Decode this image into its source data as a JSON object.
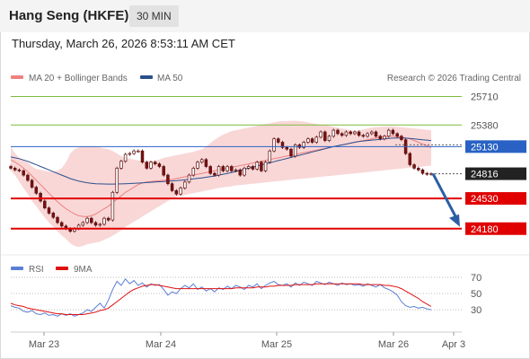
{
  "header": {
    "title": "Hang Seng (HKFE)",
    "interval": "30 MIN",
    "timestamp": "Thursday, March 26, 2026 8:53:11 AM CET"
  },
  "legend": {
    "items": [
      {
        "label": "MA 20 + Bollinger Bands",
        "color": "#f08080"
      },
      {
        "label": "MA 50",
        "color": "#2b4f8c"
      }
    ],
    "credit": "Research © 2026 Trading Central"
  },
  "rsi_legend": {
    "items": [
      {
        "label": "RSI",
        "color": "#5b7fd6"
      },
      {
        "label": "9MA",
        "color": "#e01010"
      }
    ]
  },
  "colors": {
    "up_candle": "#ffffff",
    "down_candle": "#7a1010",
    "bollinger_fill": "#f8d0d0",
    "ma20": "#f08080",
    "ma50": "#2b4f8c",
    "resistance_green": "#7cbc3c",
    "resistance_blue": "#2962c4",
    "support_red": "#e00000",
    "current_price": "#222222",
    "arrow": "#2b5fa3"
  },
  "chart_data": [
    {
      "type": "candlestick",
      "title": "",
      "xlabel": "",
      "ylabel": "",
      "x_ticks": [
        "Mar 23",
        "Mar 24",
        "Mar 25",
        "Mar 26",
        "Apr 3"
      ],
      "ylim": [
        23980,
        25830
      ],
      "levels": [
        {
          "value": 25710,
          "label": "25710",
          "kind": "resistance",
          "style": "line-green"
        },
        {
          "value": 25380,
          "label": "25380",
          "kind": "resistance",
          "style": "line-green"
        },
        {
          "value": 25130,
          "label": "25130",
          "kind": "resistance",
          "style": "tag-blue"
        },
        {
          "value": 24816,
          "label": "24816",
          "kind": "current",
          "style": "tag-dark"
        },
        {
          "value": 24530,
          "label": "24530",
          "kind": "support",
          "style": "tag-red"
        },
        {
          "value": 24180,
          "label": "24180",
          "kind": "support",
          "style": "tag-red"
        }
      ],
      "close": [
        24880,
        24860,
        24850,
        24800,
        24740,
        24660,
        24590,
        24500,
        24420,
        24360,
        24310,
        24250,
        24210,
        24180,
        24150,
        24180,
        24220,
        24250,
        24300,
        24250,
        24220,
        24230,
        24300,
        24280,
        24600,
        24880,
        24960,
        25040,
        25050,
        25080,
        25080,
        24950,
        24880,
        24950,
        24930,
        24900,
        24800,
        24700,
        24620,
        24580,
        24650,
        24720,
        24800,
        24880,
        24950,
        24980,
        24900,
        24820,
        24800,
        24900,
        24850,
        24900,
        24850,
        24860,
        24800,
        24880,
        24900,
        24870,
        24950,
        24850,
        24950,
        25080,
        25220,
        25180,
        25120,
        25100,
        25020,
        25150,
        25120,
        25180,
        25220,
        25180,
        25240,
        25300,
        25200,
        25250,
        25320,
        25280,
        25260,
        25300,
        25280,
        25300,
        25260,
        25250,
        25280,
        25300,
        25250,
        25220,
        25250,
        25320,
        25280,
        25250,
        25210,
        25050,
        24920,
        24880,
        24860,
        24820,
        24810,
        24816
      ],
      "bollinger_upper": [
        25130,
        25050,
        25000,
        24980,
        24950,
        24900,
        24870,
        24860,
        24850,
        24840,
        24840,
        24850,
        24880,
        24950,
        25050,
        25100,
        25120,
        25130,
        25130,
        25130,
        25125,
        25120,
        25110,
        25100,
        25080,
        25050,
        25020,
        25000,
        24990,
        24980,
        24970,
        24960,
        24960,
        24965,
        24970,
        24980,
        25000,
        25010,
        25020,
        25030,
        25040,
        25050,
        25060,
        25070,
        25085,
        25100,
        25130,
        25170,
        25210,
        25240,
        25270,
        25290,
        25310,
        25320,
        25330,
        25340,
        25350,
        25360,
        25370,
        25380,
        25390,
        25400,
        25410,
        25420,
        25425,
        25425,
        25430,
        25430,
        25425,
        25420,
        25410,
        25400,
        25390,
        25385,
        25380,
        25370,
        25360,
        25350,
        25340,
        25330,
        25320,
        25310,
        25320,
        25330,
        25340,
        25350,
        25355,
        25360,
        25360,
        25365,
        25365,
        25360,
        25355,
        25350,
        25345,
        25340,
        25335,
        25330,
        25325,
        25320
      ],
      "bollinger_lower": [
        24850,
        24800,
        24720,
        24650,
        24580,
        24500,
        24440,
        24370,
        24310,
        24250,
        24200,
        24150,
        24100,
        24060,
        24010,
        23980,
        23970,
        23980,
        24000,
        24010,
        24020,
        24030,
        24050,
        24070,
        24100,
        24130,
        24160,
        24200,
        24230,
        24260,
        24290,
        24320,
        24350,
        24380,
        24410,
        24440,
        24470,
        24500,
        24530,
        24550,
        24560,
        24570,
        24580,
        24590,
        24600,
        24610,
        24620,
        24630,
        24640,
        24650,
        24660,
        24665,
        24670,
        24680,
        24685,
        24690,
        24695,
        24700,
        24705,
        24710,
        24715,
        24720,
        24725,
        24730,
        24735,
        24740,
        24745,
        24750,
        24755,
        24760,
        24765,
        24770,
        24775,
        24780,
        24785,
        24790,
        24795,
        24800,
        24805,
        24810,
        24815,
        24820,
        24825,
        24830,
        24835,
        24840,
        24845,
        24850,
        24855,
        24860,
        24865,
        24870,
        24875,
        24880,
        24885,
        24890,
        24895,
        24900,
        24905,
        24910
      ],
      "ma20": [
        24980,
        24950,
        24920,
        24880,
        24840,
        24790,
        24740,
        24690,
        24640,
        24590,
        24540,
        24490,
        24450,
        24410,
        24380,
        24350,
        24330,
        24320,
        24320,
        24330,
        24350,
        24380,
        24410,
        24440,
        24480,
        24520,
        24560,
        24600,
        24630,
        24660,
        24690,
        24710,
        24720,
        24725,
        24730,
        24735,
        24740,
        24745,
        24750,
        24760,
        24770,
        24780,
        24790,
        24800,
        24810,
        24820,
        24830,
        24840,
        24850,
        24860,
        24870,
        24880,
        24890,
        24900,
        24910,
        24920,
        24930,
        24940,
        24950,
        24960,
        24970,
        24980,
        24990,
        25000,
        25010,
        25020,
        25030,
        25040,
        25050,
        25060,
        25070,
        25080,
        25090,
        25100,
        25110,
        25120,
        25130,
        25140,
        25150,
        25160,
        25170,
        25180,
        25190,
        25200,
        25210,
        25220,
        25230,
        25240,
        25245,
        25250,
        25250,
        25245,
        25240,
        25230,
        25220,
        25200,
        25180,
        25160,
        25140,
        25120
      ],
      "ma50": [
        25010,
        25000,
        24990,
        24975,
        24960,
        24940,
        24920,
        24900,
        24880,
        24860,
        24840,
        24820,
        24800,
        24780,
        24760,
        24745,
        24730,
        24720,
        24712,
        24705,
        24700,
        24698,
        24697,
        24696,
        24696,
        24697,
        24698,
        24700,
        24702,
        24705,
        24708,
        24711,
        24714,
        24717,
        24720,
        24723,
        24726,
        24729,
        24732,
        24736,
        24740,
        24745,
        24750,
        24756,
        24762,
        24768,
        24775,
        24782,
        24790,
        24800,
        24810,
        24820,
        24830,
        24842,
        24855,
        24868,
        24880,
        24892,
        24905,
        24918,
        24930,
        24942,
        24955,
        24968,
        24980,
        24992,
        25005,
        25018,
        25030,
        25042,
        25055,
        25068,
        25080,
        25092,
        25105,
        25118,
        25130,
        25140,
        25150,
        25160,
        25170,
        25180,
        25190,
        25195,
        25200,
        25205,
        25210,
        25215,
        25220,
        25225,
        25228,
        25230,
        25230,
        25228,
        25225,
        25220,
        25215,
        25210,
        25205,
        25200
      ]
    },
    {
      "type": "line",
      "title": "",
      "xlabel": "",
      "ylabel": "",
      "ylim": [
        0,
        100
      ],
      "y_ticks": [
        70,
        50,
        30
      ],
      "x_ticks": [
        "Mar 23",
        "Mar 24",
        "Mar 25",
        "Mar 26",
        "Apr 3"
      ],
      "series": [
        {
          "name": "RSI",
          "values": [
            35,
            33,
            32,
            28,
            27,
            29,
            25,
            24,
            26,
            23,
            24,
            22,
            25,
            23,
            25,
            22,
            24,
            26,
            30,
            28,
            33,
            38,
            32,
            42,
            55,
            65,
            60,
            68,
            62,
            66,
            60,
            63,
            58,
            62,
            60,
            61,
            55,
            48,
            52,
            50,
            56,
            60,
            57,
            62,
            55,
            58,
            53,
            56,
            52,
            57,
            55,
            59,
            56,
            60,
            58,
            55,
            60,
            58,
            62,
            56,
            60,
            63,
            65,
            61,
            60,
            62,
            58,
            63,
            60,
            64,
            62,
            60,
            65,
            63,
            61,
            64,
            62,
            60,
            63,
            61,
            62,
            60,
            61,
            59,
            62,
            60,
            58,
            61,
            57,
            55,
            52,
            48,
            40,
            35,
            33,
            34,
            32,
            33,
            31,
            30
          ]
        },
        {
          "name": "9MA",
          "values": [
            38,
            36,
            35,
            34,
            32,
            31,
            30,
            29,
            28,
            27,
            26,
            25,
            25,
            24,
            24,
            24,
            24,
            24,
            25,
            26,
            27,
            29,
            30,
            32,
            36,
            40,
            44,
            48,
            52,
            55,
            57,
            59,
            60,
            61,
            61,
            60,
            59,
            58,
            57,
            56,
            56,
            56,
            56,
            56,
            56,
            56,
            56,
            56,
            56,
            56,
            56,
            56,
            56,
            57,
            57,
            57,
            57,
            57,
            58,
            58,
            58,
            59,
            59,
            60,
            60,
            60,
            60,
            61,
            61,
            61,
            61,
            61,
            62,
            62,
            62,
            62,
            62,
            62,
            62,
            62,
            62,
            62,
            62,
            61,
            61,
            61,
            61,
            61,
            60,
            60,
            59,
            58,
            56,
            53,
            50,
            47,
            44,
            40,
            37,
            34
          ]
        }
      ]
    }
  ]
}
